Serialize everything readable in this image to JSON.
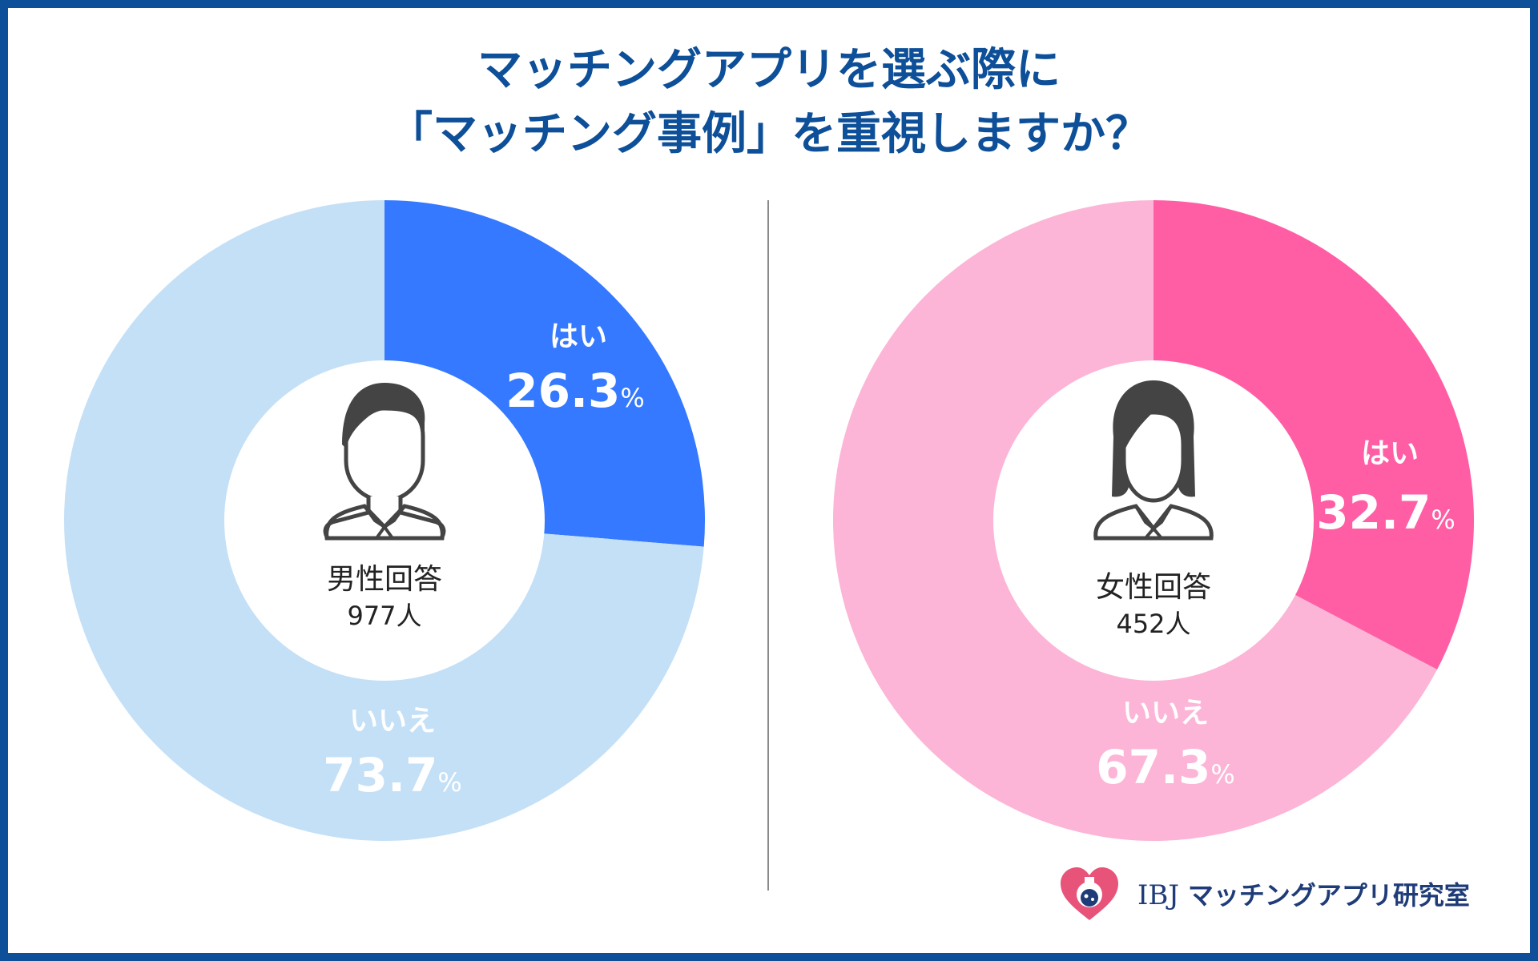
{
  "title": {
    "line1": "マッチングアプリを選ぶ際に",
    "line2": "「マッチング事例」を重視しますか？"
  },
  "chart_data": [
    {
      "type": "pie",
      "variant": "donut",
      "group_label": "男性回答",
      "respondents": "977人",
      "slices": [
        {
          "label": "はい",
          "value": 26.3,
          "display": "26.3",
          "color": "#3479ff"
        },
        {
          "label": "いいえ",
          "value": 73.7,
          "display": "73.7",
          "color": "#c4e0f7"
        }
      ],
      "unit": "%"
    },
    {
      "type": "pie",
      "variant": "donut",
      "group_label": "女性回答",
      "respondents": "452人",
      "slices": [
        {
          "label": "はい",
          "value": 32.7,
          "display": "32.7",
          "color": "#ff5ea5"
        },
        {
          "label": "いいえ",
          "value": 67.3,
          "display": "67.3",
          "color": "#fcb5d6"
        }
      ],
      "unit": "%"
    }
  ],
  "brand": {
    "latin": "IBJ",
    "name": "マッチングアプリ研究室"
  },
  "colors": {
    "frame": "#0d4f98",
    "title": "#0d4f98",
    "icon": "#444444"
  }
}
